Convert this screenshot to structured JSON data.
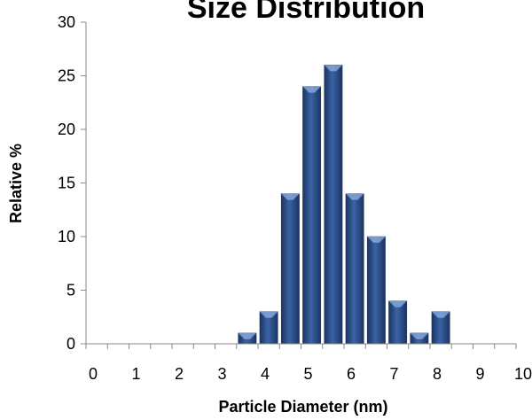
{
  "chart_data": {
    "type": "bar",
    "title": "Size Distribution",
    "xlabel": "Particle Diameter (nm)",
    "ylabel": "Relative %",
    "xlim": [
      0,
      10
    ],
    "ylim": [
      0,
      30
    ],
    "x_ticks": [
      0,
      1,
      2,
      3,
      4,
      5,
      6,
      7,
      8,
      9,
      10
    ],
    "y_ticks": [
      0,
      5,
      10,
      15,
      20,
      25,
      30
    ],
    "x": [
      3.5,
      4.0,
      4.5,
      5.0,
      5.5,
      6.0,
      6.5,
      7.0,
      7.5,
      8.0
    ],
    "values": [
      1,
      3,
      14,
      24,
      26,
      14,
      10,
      4,
      1,
      3
    ],
    "bar_color": "#2E4F88",
    "grid": false,
    "legend": "none"
  }
}
